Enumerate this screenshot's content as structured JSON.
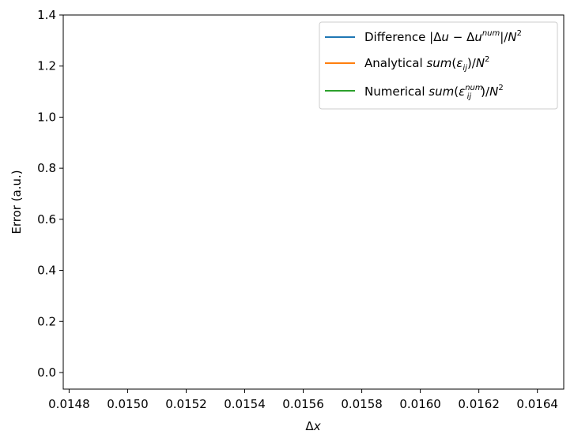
{
  "chart_data": {
    "type": "line",
    "title": "",
    "xlabel": "Δx",
    "ylabel": "Error (a.u.)",
    "xlim": [
      0.01478,
      0.01649
    ],
    "ylim": [
      -0.065,
      1.4
    ],
    "grid": false,
    "x_ticks": [
      0.0148,
      0.015,
      0.0152,
      0.0154,
      0.0156,
      0.0158,
      0.016,
      0.0162,
      0.0164
    ],
    "x_tick_labels": [
      "0.0148",
      "0.0150",
      "0.0152",
      "0.0154",
      "0.0156",
      "0.0158",
      "0.0160",
      "0.0162",
      "0.0164"
    ],
    "y_ticks": [
      0.0,
      0.2,
      0.4,
      0.6,
      0.8,
      1.0,
      1.2,
      1.4
    ],
    "y_tick_labels": [
      "0.0",
      "0.2",
      "0.4",
      "0.6",
      "0.8",
      "1.0",
      "1.2",
      "1.4"
    ],
    "legend_position": "top-right",
    "series": [
      {
        "name": "Difference |Δu − Δu^num|/N^2",
        "color": "#1f77b4",
        "x": [],
        "y": []
      },
      {
        "name": "Analytical sum(ε_ij)/N^2",
        "color": "#ff7f0e",
        "x": [],
        "y": []
      },
      {
        "name": "Numerical sum(ε_ij^num)/N^2",
        "color": "#2ca02c",
        "x": [],
        "y": []
      }
    ]
  }
}
